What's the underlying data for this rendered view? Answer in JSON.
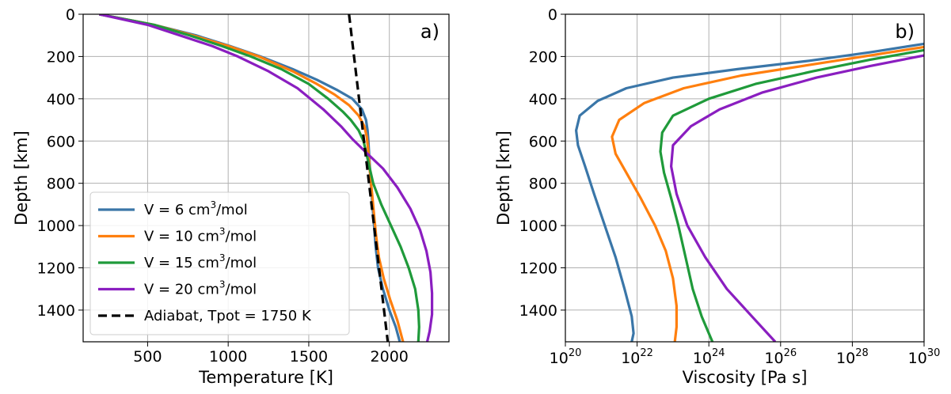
{
  "chart_data": [
    {
      "type": "line",
      "panel_label": "a)",
      "xlabel": "Temperature [K]",
      "ylabel": "Depth [km]",
      "xlim": [
        100,
        2370
      ],
      "ylim": [
        1550,
        0
      ],
      "x_ticks": [
        500,
        1000,
        1500,
        2000
      ],
      "x_tick_labels": [
        "500",
        "1000",
        "1500",
        "2000"
      ],
      "y_ticks": [
        0,
        200,
        400,
        600,
        800,
        1000,
        1200,
        1400
      ],
      "y_tick_labels": [
        "0",
        "200",
        "400",
        "600",
        "800",
        "1000",
        "1200",
        "1400"
      ],
      "grid": true,
      "legend_position": "lower-left",
      "legend": [
        {
          "series": 0,
          "prefix": "V = 6 cm",
          "sup": "3",
          "suffix": "/mol"
        },
        {
          "series": 1,
          "prefix": "V = 10 cm",
          "sup": "3",
          "suffix": "/mol"
        },
        {
          "series": 2,
          "prefix": "V = 15 cm",
          "sup": "3",
          "suffix": "/mol"
        },
        {
          "series": 3,
          "prefix": "V = 20 cm",
          "sup": "3",
          "suffix": "/mol"
        },
        {
          "series": 4,
          "prefix": "Adiabat, Tpot = 1750 K",
          "sup": "",
          "suffix": ""
        }
      ],
      "series": [
        {
          "name": "V = 6 cm3/mol",
          "color": "#3a76a8",
          "style": "solid",
          "points": [
            [
              200,
              0
            ],
            [
              540,
              50
            ],
            [
              800,
              100
            ],
            [
              1010,
              150
            ],
            [
              1200,
              200
            ],
            [
              1400,
              260
            ],
            [
              1550,
              310
            ],
            [
              1680,
              360
            ],
            [
              1770,
              400
            ],
            [
              1830,
              450
            ],
            [
              1855,
              500
            ],
            [
              1865,
              550
            ],
            [
              1870,
              600
            ],
            [
              1877,
              700
            ],
            [
              1885,
              800
            ],
            [
              1895,
              900
            ],
            [
              1905,
              1000
            ],
            [
              1915,
              1100
            ],
            [
              1930,
              1200
            ],
            [
              1960,
              1300
            ],
            [
              2000,
              1400
            ],
            [
              2040,
              1480
            ],
            [
              2065,
              1550
            ]
          ]
        },
        {
          "name": "V = 10 cm3/mol",
          "color": "#ff7f0e",
          "style": "solid",
          "points": [
            [
              200,
              0
            ],
            [
              540,
              50
            ],
            [
              780,
              100
            ],
            [
              1000,
              150
            ],
            [
              1190,
              200
            ],
            [
              1400,
              270
            ],
            [
              1550,
              330
            ],
            [
              1660,
              380
            ],
            [
              1750,
              430
            ],
            [
              1810,
              480
            ],
            [
              1845,
              530
            ],
            [
              1860,
              580
            ],
            [
              1870,
              650
            ],
            [
              1880,
              750
            ],
            [
              1893,
              850
            ],
            [
              1905,
              950
            ],
            [
              1918,
              1050
            ],
            [
              1935,
              1150
            ],
            [
              1965,
              1250
            ],
            [
              2005,
              1350
            ],
            [
              2050,
              1450
            ],
            [
              2085,
              1550
            ]
          ]
        },
        {
          "name": "V = 15 cm3/mol",
          "color": "#1f9a3a",
          "style": "solid",
          "points": [
            [
              200,
              0
            ],
            [
              540,
              50
            ],
            [
              760,
              100
            ],
            [
              960,
              150
            ],
            [
              1140,
              200
            ],
            [
              1330,
              260
            ],
            [
              1500,
              330
            ],
            [
              1620,
              400
            ],
            [
              1710,
              460
            ],
            [
              1760,
              500
            ],
            [
              1810,
              550
            ],
            [
              1840,
              600
            ],
            [
              1870,
              700
            ],
            [
              1900,
              800
            ],
            [
              1950,
              900
            ],
            [
              2010,
              1000
            ],
            [
              2070,
              1100
            ],
            [
              2120,
              1200
            ],
            [
              2160,
              1300
            ],
            [
              2180,
              1400
            ],
            [
              2185,
              1480
            ],
            [
              2180,
              1550
            ]
          ]
        },
        {
          "name": "V = 20 cm3/mol",
          "color": "#8a1ec0",
          "style": "solid",
          "points": [
            [
              200,
              0
            ],
            [
              500,
              50
            ],
            [
              700,
              100
            ],
            [
              900,
              150
            ],
            [
              1060,
              200
            ],
            [
              1250,
              270
            ],
            [
              1430,
              350
            ],
            [
              1590,
              450
            ],
            [
              1700,
              530
            ],
            [
              1770,
              590
            ],
            [
              1850,
              650
            ],
            [
              1960,
              730
            ],
            [
              2050,
              820
            ],
            [
              2130,
              920
            ],
            [
              2190,
              1020
            ],
            [
              2230,
              1120
            ],
            [
              2255,
              1220
            ],
            [
              2265,
              1320
            ],
            [
              2265,
              1420
            ],
            [
              2250,
              1500
            ],
            [
              2235,
              1550
            ]
          ]
        },
        {
          "name": "Adiabat, Tpot = 1750 K",
          "color": "#000000",
          "style": "dashed",
          "points": [
            [
              1750,
              0
            ],
            [
              1990,
              1550
            ]
          ]
        }
      ]
    },
    {
      "type": "line",
      "panel_label": "b)",
      "xlabel": "Viscosity [Pa s]",
      "ylabel": "Depth [km]",
      "x_scale": "log",
      "xlim_log10": [
        20,
        30
      ],
      "ylim": [
        1550,
        0
      ],
      "x_ticks_log10": [
        20,
        22,
        24,
        26,
        28,
        30
      ],
      "x_tick_base": "10",
      "x_tick_exponents": [
        "20",
        "22",
        "24",
        "26",
        "28",
        "30"
      ],
      "y_ticks": [
        0,
        200,
        400,
        600,
        800,
        1000,
        1200,
        1400
      ],
      "y_tick_labels": [
        "0",
        "200",
        "400",
        "600",
        "800",
        "1000",
        "1200",
        "1400"
      ],
      "grid": true,
      "series": [
        {
          "name": "V = 6 cm3/mol",
          "color": "#3a76a8",
          "style": "solid",
          "points_log10": [
            [
              30.0,
              140
            ],
            [
              28.5,
              180
            ],
            [
              26.8,
              220
            ],
            [
              24.8,
              260
            ],
            [
              23.0,
              300
            ],
            [
              21.7,
              350
            ],
            [
              20.9,
              410
            ],
            [
              20.4,
              480
            ],
            [
              20.3,
              550
            ],
            [
              20.35,
              620
            ],
            [
              20.55,
              720
            ],
            [
              20.8,
              850
            ],
            [
              21.1,
              1000
            ],
            [
              21.4,
              1150
            ],
            [
              21.65,
              1300
            ],
            [
              21.85,
              1430
            ],
            [
              21.9,
              1510
            ],
            [
              21.85,
              1550
            ]
          ]
        },
        {
          "name": "V = 10 cm3/mol",
          "color": "#ff7f0e",
          "style": "solid",
          "points_log10": [
            [
              30.0,
              155
            ],
            [
              28.5,
              195
            ],
            [
              26.8,
              240
            ],
            [
              24.9,
              290
            ],
            [
              23.3,
              350
            ],
            [
              22.2,
              420
            ],
            [
              21.5,
              500
            ],
            [
              21.3,
              580
            ],
            [
              21.4,
              660
            ],
            [
              21.7,
              750
            ],
            [
              22.1,
              870
            ],
            [
              22.5,
              1000
            ],
            [
              22.8,
              1120
            ],
            [
              23.0,
              1250
            ],
            [
              23.1,
              1380
            ],
            [
              23.1,
              1480
            ],
            [
              23.05,
              1550
            ]
          ]
        },
        {
          "name": "V = 15 cm3/mol",
          "color": "#1f9a3a",
          "style": "solid",
          "points_log10": [
            [
              30.0,
              170
            ],
            [
              28.5,
              215
            ],
            [
              26.9,
              270
            ],
            [
              25.3,
              330
            ],
            [
              24.0,
              400
            ],
            [
              23.0,
              480
            ],
            [
              22.7,
              560
            ],
            [
              22.65,
              650
            ],
            [
              22.75,
              750
            ],
            [
              22.95,
              870
            ],
            [
              23.15,
              1000
            ],
            [
              23.35,
              1150
            ],
            [
              23.55,
              1300
            ],
            [
              23.8,
              1430
            ],
            [
              24.1,
              1550
            ]
          ]
        },
        {
          "name": "V = 20 cm3/mol",
          "color": "#8a1ec0",
          "style": "solid",
          "points_log10": [
            [
              30.0,
              195
            ],
            [
              28.5,
              245
            ],
            [
              27.0,
              300
            ],
            [
              25.5,
              370
            ],
            [
              24.3,
              450
            ],
            [
              23.5,
              530
            ],
            [
              23.0,
              620
            ],
            [
              22.95,
              720
            ],
            [
              23.1,
              850
            ],
            [
              23.4,
              1000
            ],
            [
              23.9,
              1150
            ],
            [
              24.5,
              1300
            ],
            [
              25.2,
              1430
            ],
            [
              25.85,
              1550
            ]
          ]
        }
      ]
    }
  ]
}
